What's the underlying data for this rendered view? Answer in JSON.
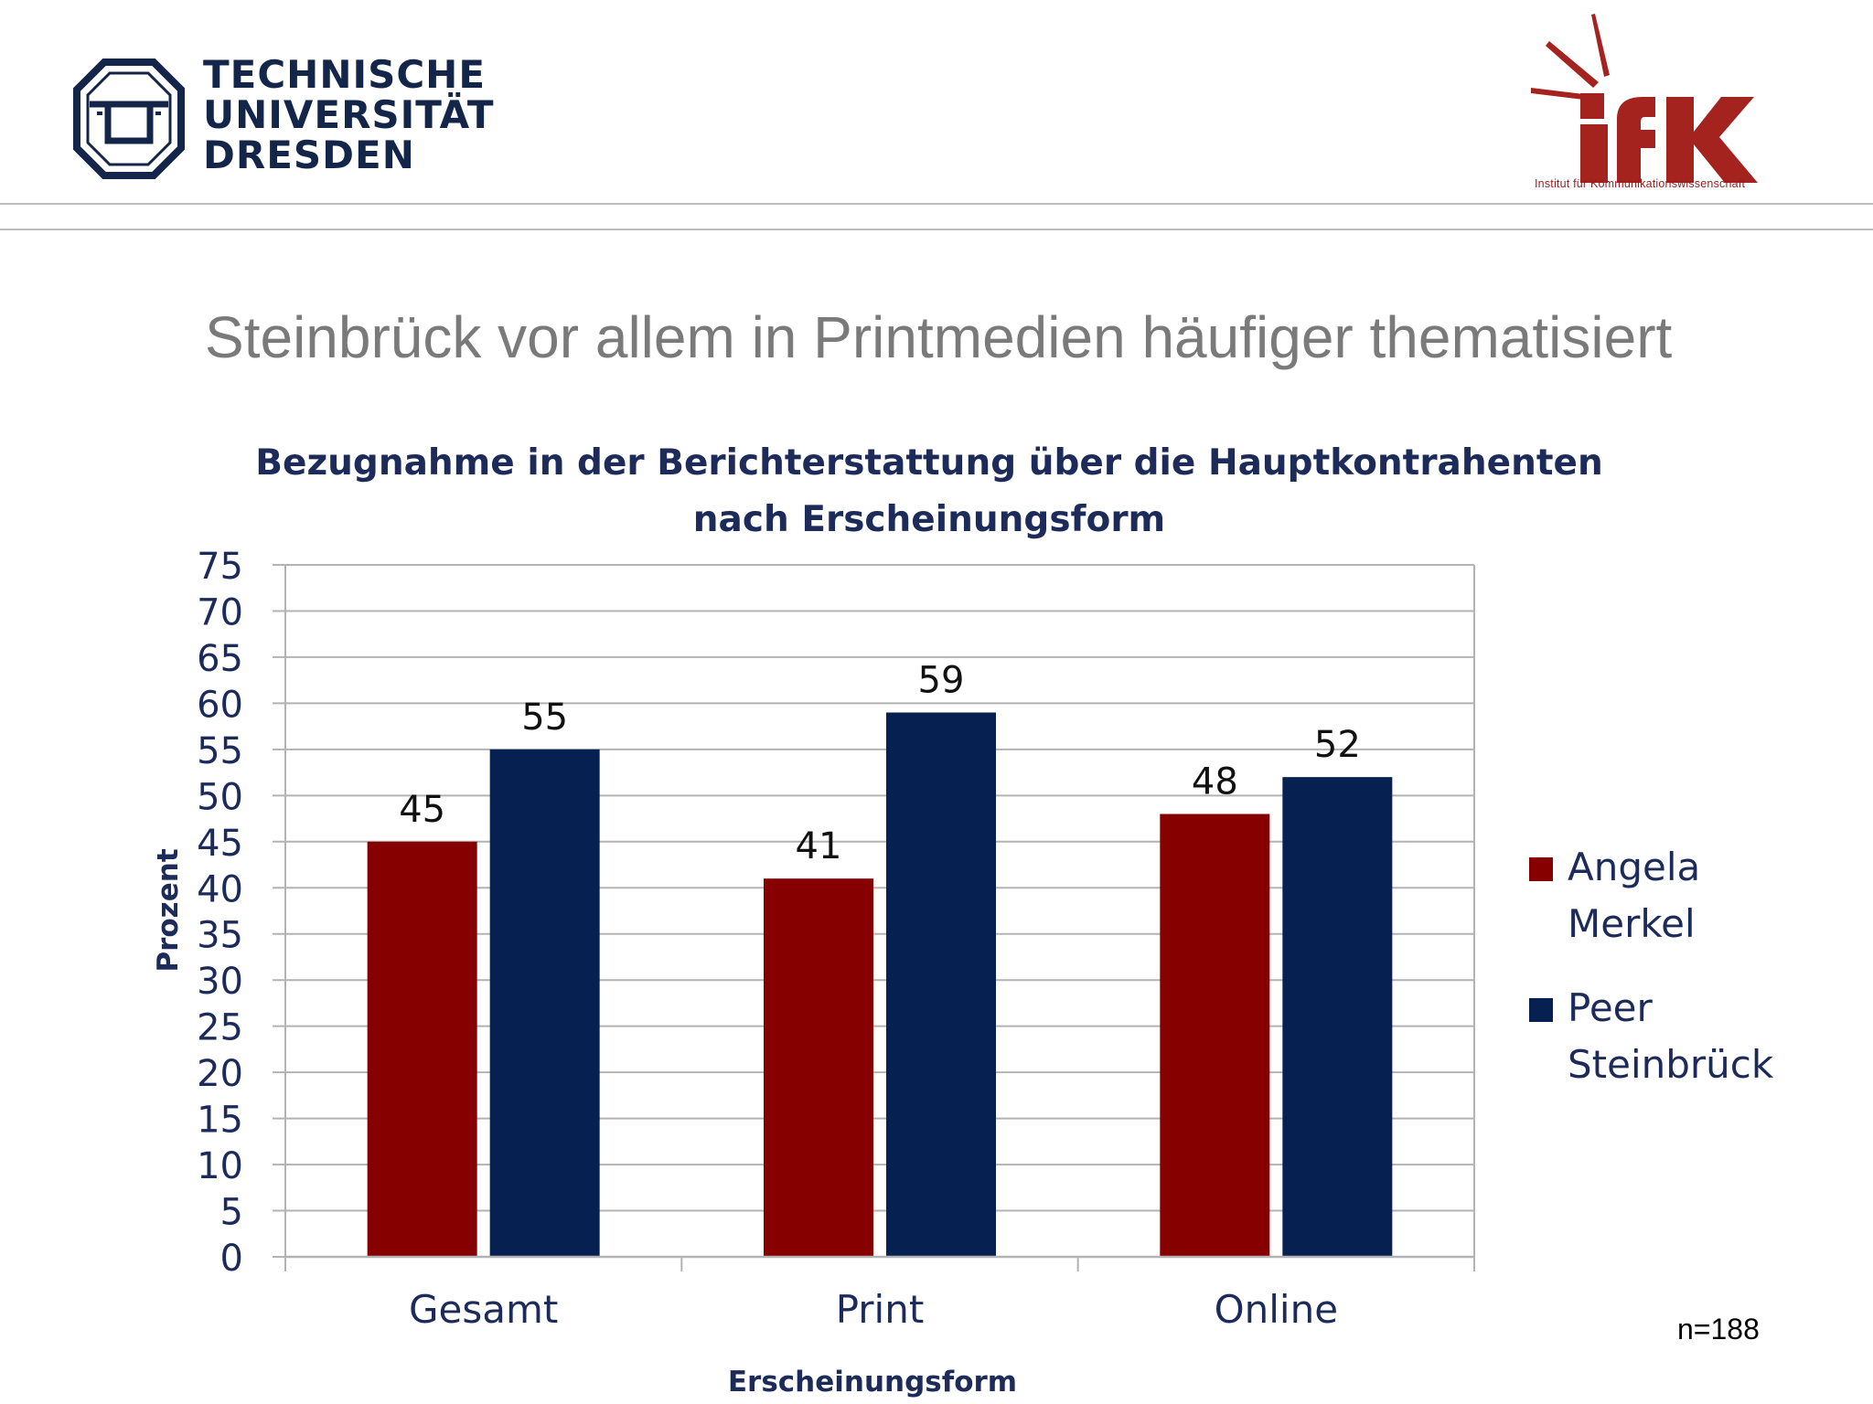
{
  "header": {
    "tud_logo": {
      "lines": [
        "TECHNISCHE",
        "UNIVERSITÄT",
        "DRESDEN"
      ],
      "color": "#14254a",
      "icon": "tu-dresden-emblem-icon"
    },
    "ifk_logo": {
      "letters": "ifK",
      "subtitle": "Institut für Kommunikationswissenschaft",
      "color": "#a4231f",
      "icon": "ifk-logo-icon"
    }
  },
  "slide": {
    "title": "Steinbrück vor allem in Printmedien häufiger thematisiert",
    "footnote": "n=188"
  },
  "chart_data": {
    "type": "bar",
    "title_lines": [
      "Bezugnahme in der Berichterstattung über die Hauptkontrahenten",
      "nach Erscheinungsform"
    ],
    "categories": [
      "Gesamt",
      "Print",
      "Online"
    ],
    "series": [
      {
        "name": "Angela Merkel",
        "name_lines": [
          "Angela",
          "Merkel"
        ],
        "color": "#870000",
        "values": [
          45,
          41,
          48
        ]
      },
      {
        "name": "Peer Steinbrück",
        "name_lines": [
          "Peer",
          "Steinbrück"
        ],
        "color": "#062052",
        "values": [
          55,
          59,
          52
        ]
      }
    ],
    "xlabel": "Erscheinungsform",
    "ylabel": "Prozent",
    "ylim": [
      0,
      75
    ],
    "yticks": [
      0,
      5,
      10,
      15,
      20,
      25,
      30,
      35,
      40,
      45,
      50,
      55,
      60,
      65,
      70,
      75
    ],
    "grid": true,
    "data_labels": true,
    "legend_position": "right",
    "text_color": "#1c2b5a",
    "grid_color": "#b3b3b3"
  }
}
